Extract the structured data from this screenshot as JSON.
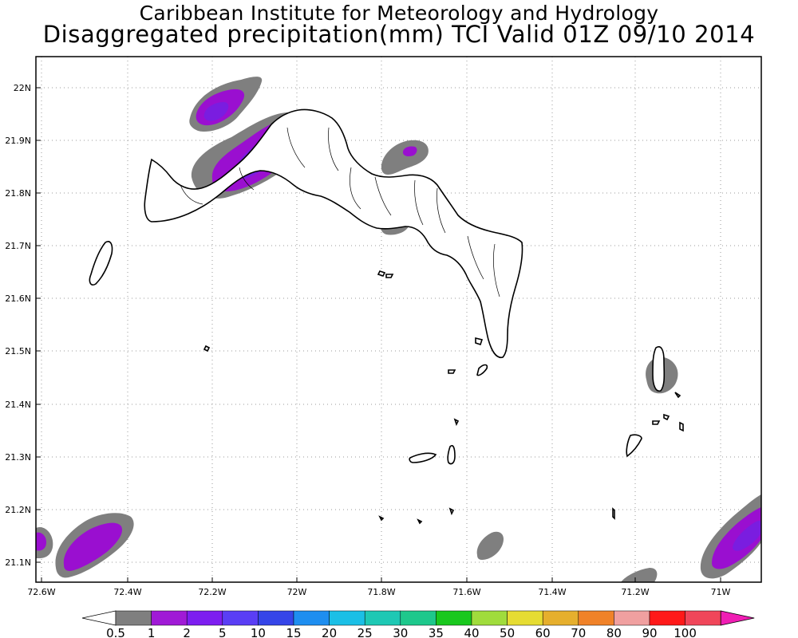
{
  "header": {
    "institution": "Caribbean Institute for Meteorology and Hydrology",
    "product": "Disaggregated precipitation(mm) TCI Valid 01Z 09/10 2014"
  },
  "map": {
    "lat_ticks": [
      "22N",
      "21.9N",
      "21.8N",
      "21.7N",
      "21.6N",
      "21.5N",
      "21.4N",
      "21.3N",
      "21.2N",
      "21.1N"
    ],
    "lon_ticks": [
      "72.6W",
      "72.4W",
      "72.2W",
      "72W",
      "71.8W",
      "71.6W",
      "71.4W",
      "71.2W",
      "71W"
    ],
    "grid": "dotted",
    "precip_colors": {
      "0.5-1": "#7f7f7f",
      "1-2": "#9a0fd0",
      "2-5": "#7a1de0",
      "island_fill": "#ffffff",
      "coast": "#000000"
    }
  },
  "colorbar": {
    "labels": [
      "0.5",
      "1",
      "2",
      "5",
      "10",
      "15",
      "20",
      "25",
      "30",
      "35",
      "40",
      "50",
      "60",
      "70",
      "80",
      "90",
      "100"
    ],
    "colors": [
      "#7f7f7f",
      "#a01ad6",
      "#7d1ef0",
      "#5a3ef5",
      "#3545e8",
      "#1e8ef0",
      "#1bbfe6",
      "#1ec8b4",
      "#1ec88c",
      "#19c81e",
      "#a0dc3c",
      "#e6dc32",
      "#e6af2d",
      "#f08228",
      "#f0a0a0",
      "#ff1919",
      "#f0465a"
    ],
    "end_colors": {
      "low": "#ffffff",
      "high": "#f01eb4"
    }
  }
}
